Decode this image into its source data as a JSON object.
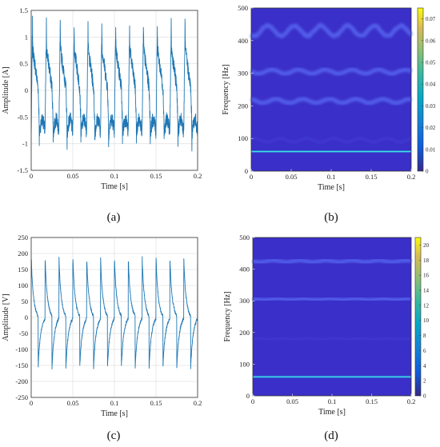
{
  "captions": [
    "(a)",
    "(b)",
    "(c)",
    "(d)"
  ],
  "chart_data": [
    {
      "id": "a",
      "type": "line",
      "xlabel": "Time [s]",
      "ylabel": "Amplitude [A]",
      "xlim": [
        0,
        0.2
      ],
      "ylim": [
        -1.5,
        1.5
      ],
      "xticks": [
        "0",
        "0.05",
        "0.1",
        "0.15",
        "0.2"
      ],
      "yticks": [
        "-1.5",
        "-1",
        "-0.5",
        "0",
        "0.5",
        "1",
        "1.5"
      ],
      "grid": true,
      "line_color": "#1f77b4",
      "signal": {
        "fundamental_hz": 60,
        "peak_high": 1.4,
        "typical_high": 0.7,
        "typical_low": -0.8,
        "peak_low": -1.2
      }
    },
    {
      "id": "b",
      "type": "heatmap",
      "xlabel": "Time [s]",
      "ylabel": "Frequency [Hz]",
      "xlim": [
        0,
        0.2
      ],
      "ylim": [
        0,
        500
      ],
      "xticks": [
        "0",
        "0.05",
        "0.1",
        "0.15",
        "0.2"
      ],
      "yticks": [
        "0",
        "100",
        "200",
        "300",
        "400",
        "500"
      ],
      "colorbar_ticks": [
        "0",
        "0.01",
        "0.02",
        "0.03",
        "0.04",
        "0.05",
        "0.06",
        "0.07"
      ],
      "colorbar_range": [
        0,
        0.075
      ],
      "background_color": "#3a2fc8",
      "bands": [
        {
          "frequency": 60,
          "strength": "strong"
        },
        {
          "frequency": 95,
          "strength": "weak"
        },
        {
          "frequency": 215,
          "strength": "medium"
        },
        {
          "frequency": 305,
          "strength": "medium"
        },
        {
          "frequency": 430,
          "strength": "medium"
        }
      ]
    },
    {
      "id": "c",
      "type": "line",
      "xlabel": "Time [s]",
      "ylabel": "Amplitude [V]",
      "xlim": [
        0,
        0.2
      ],
      "ylim": [
        -250,
        250
      ],
      "xticks": [
        "0",
        "0.05",
        "0.1",
        "0.15",
        "0.2"
      ],
      "yticks": [
        "-250",
        "-200",
        "-150",
        "-100",
        "-50",
        "0",
        "50",
        "100",
        "150",
        "200",
        "250"
      ],
      "grid": true,
      "line_color": "#1f77b4",
      "signal": {
        "fundamental_hz": 60,
        "peak_high": 210,
        "typical_high": 165,
        "typical_low": -150,
        "peak_low": -160
      }
    },
    {
      "id": "d",
      "type": "heatmap",
      "xlabel": "Time [s]",
      "ylabel": "Frequency [Hz]",
      "xlim": [
        0,
        0.2
      ],
      "ylim": [
        0,
        500
      ],
      "xticks": [
        "0",
        "0.05",
        "0.1",
        "0.15",
        "0.2"
      ],
      "yticks": [
        "0",
        "100",
        "200",
        "300",
        "400",
        "500"
      ],
      "colorbar_ticks": [
        "0",
        "2",
        "4",
        "6",
        "8",
        "10",
        "12",
        "14",
        "16",
        "18",
        "20"
      ],
      "colorbar_range": [
        0,
        21
      ],
      "background_color": "#3a2fc8",
      "bands": [
        {
          "frequency": 60,
          "strength": "strong"
        },
        {
          "frequency": 180,
          "strength": "weak"
        },
        {
          "frequency": 305,
          "strength": "medium"
        },
        {
          "frequency": 425,
          "strength": "medium"
        }
      ]
    }
  ]
}
